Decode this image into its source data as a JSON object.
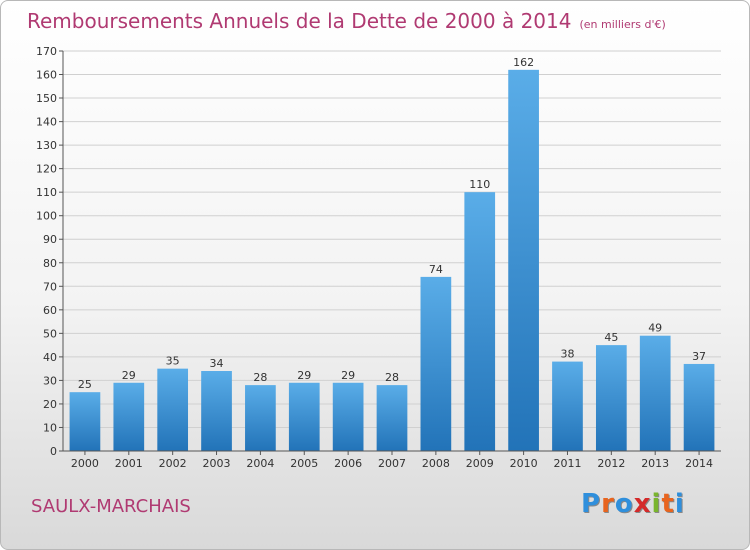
{
  "header": {
    "title": "Remboursements Annuels de la Dette de 2000 à 2014",
    "unit": "(en milliers d'€)"
  },
  "footer": {
    "commune": "SAULX-MARCHAIS",
    "logo_letters": [
      "P",
      "r",
      "o",
      "x",
      "i",
      "t",
      "i"
    ]
  },
  "colors": {
    "title": "#b03a72",
    "bar_light": "#5aade8",
    "bar_dark": "#2273b8",
    "grid": "#d0d0d0",
    "logo": [
      "#2f8fdc",
      "#e8641e",
      "#2f8fdc",
      "#d42a2a",
      "#7ab52e",
      "#e8641e",
      "#2f8fdc"
    ]
  },
  "chart_data": {
    "type": "bar",
    "title": "Remboursements Annuels de la Dette de 2000 à 2014",
    "categories": [
      "2000",
      "2001",
      "2002",
      "2003",
      "2004",
      "2005",
      "2006",
      "2007",
      "2008",
      "2009",
      "2010",
      "2011",
      "2012",
      "2013",
      "2014"
    ],
    "values": [
      25,
      29,
      35,
      34,
      28,
      29,
      29,
      28,
      74,
      110,
      162,
      38,
      45,
      49,
      37
    ],
    "ylim": [
      0,
      170
    ],
    "yticks": [
      0,
      10,
      20,
      30,
      40,
      50,
      60,
      70,
      80,
      90,
      100,
      110,
      120,
      130,
      140,
      150,
      160,
      170
    ],
    "grid": true,
    "xlabel": "",
    "ylabel": ""
  }
}
